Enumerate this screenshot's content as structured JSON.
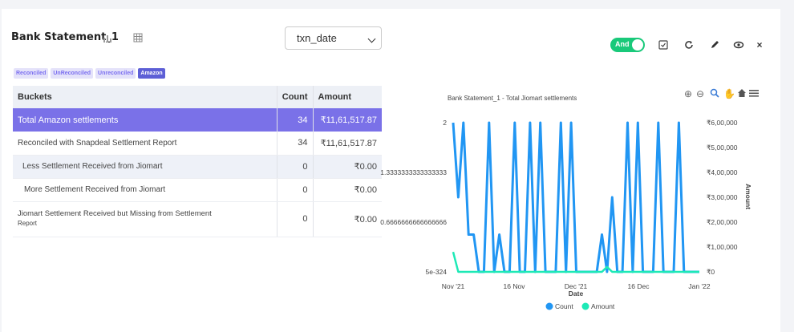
{
  "header": {
    "title": "Bank Statement_1",
    "date_field": "txn_date",
    "toggle_label": "And"
  },
  "filters": [
    {
      "label": "Reconciled",
      "active": false
    },
    {
      "label": "UnReconciled",
      "active": false
    },
    {
      "label": "Unreconciled",
      "active": false
    },
    {
      "label": "Amazon",
      "active": true
    }
  ],
  "table": {
    "headers": [
      "Buckets",
      "Count",
      "Amount"
    ],
    "rows": [
      {
        "bucket": "Total Amazon settlements",
        "count": "34",
        "amount": "₹11,61,517.87"
      },
      {
        "bucket": "Reconciled with Snapdeal Settlement Report",
        "count": "34",
        "amount": "₹11,61,517.87"
      },
      {
        "bucket": "Less Settlement Received from Jiomart",
        "count": "0",
        "amount": "₹0.00"
      },
      {
        "bucket": "More Settlement Received from Jiomart",
        "count": "0",
        "amount": "₹0.00"
      },
      {
        "bucket": "Jiomart Settlement Received but Missing from Settlement",
        "bucket_line2": "Report",
        "count": "0",
        "amount": "₹0.00"
      }
    ]
  },
  "chart_data": {
    "type": "line",
    "title": "Bank Statement_1 - Total Jiomart settlements",
    "xlabel": "Date",
    "ylabel_right": "Amount",
    "x_ticks": [
      "Nov '21",
      "16 Nov",
      "Dec '21",
      "16 Dec",
      "Jan '22"
    ],
    "y_left_ticks": [
      "2",
      "1.3333333333333333",
      "0.6666666666666666",
      "5e-324"
    ],
    "y_right_ticks": [
      "₹6,00,000",
      "₹5,00,000",
      "₹4,00,000",
      "₹3,00,000",
      "₹2,00,000",
      "₹1,00,000",
      "₹0"
    ],
    "series": [
      {
        "name": "Count",
        "color": "#2196f3",
        "values": [
          2,
          1,
          2,
          0.5,
          0.5,
          0,
          0,
          2,
          0,
          0.5,
          0,
          0,
          2,
          0,
          0,
          2,
          0,
          2,
          0,
          0,
          0,
          2,
          0,
          2,
          0,
          0,
          0,
          0,
          0,
          0.5,
          0,
          1,
          0,
          0,
          2,
          0,
          2,
          0,
          0,
          0,
          2,
          0,
          0,
          0,
          2,
          0,
          0,
          0,
          0
        ]
      },
      {
        "name": "Amount",
        "color": "#1de9b6",
        "values": [
          80000,
          0,
          0,
          0,
          0,
          0,
          0,
          0,
          0,
          0,
          0,
          0,
          0,
          0,
          0,
          0,
          0,
          0,
          0,
          0,
          0,
          0,
          0,
          0,
          0,
          0,
          0,
          0,
          0,
          0,
          20000,
          0,
          0,
          0,
          0,
          0,
          0,
          0,
          0,
          0,
          0,
          0,
          0,
          0,
          0,
          0,
          0,
          0,
          0
        ]
      }
    ],
    "legend": [
      "Count",
      "Amount"
    ],
    "legend_placement": "bottom"
  },
  "icons": [
    "bar-chart-icon",
    "table-icon",
    "checkbox-icon",
    "refresh-icon",
    "edit-icon",
    "eye-icon",
    "close-icon",
    "zoom-in-icon",
    "zoom-out-icon",
    "magnifier-icon",
    "pan-icon",
    "home-icon",
    "menu-icon"
  ]
}
